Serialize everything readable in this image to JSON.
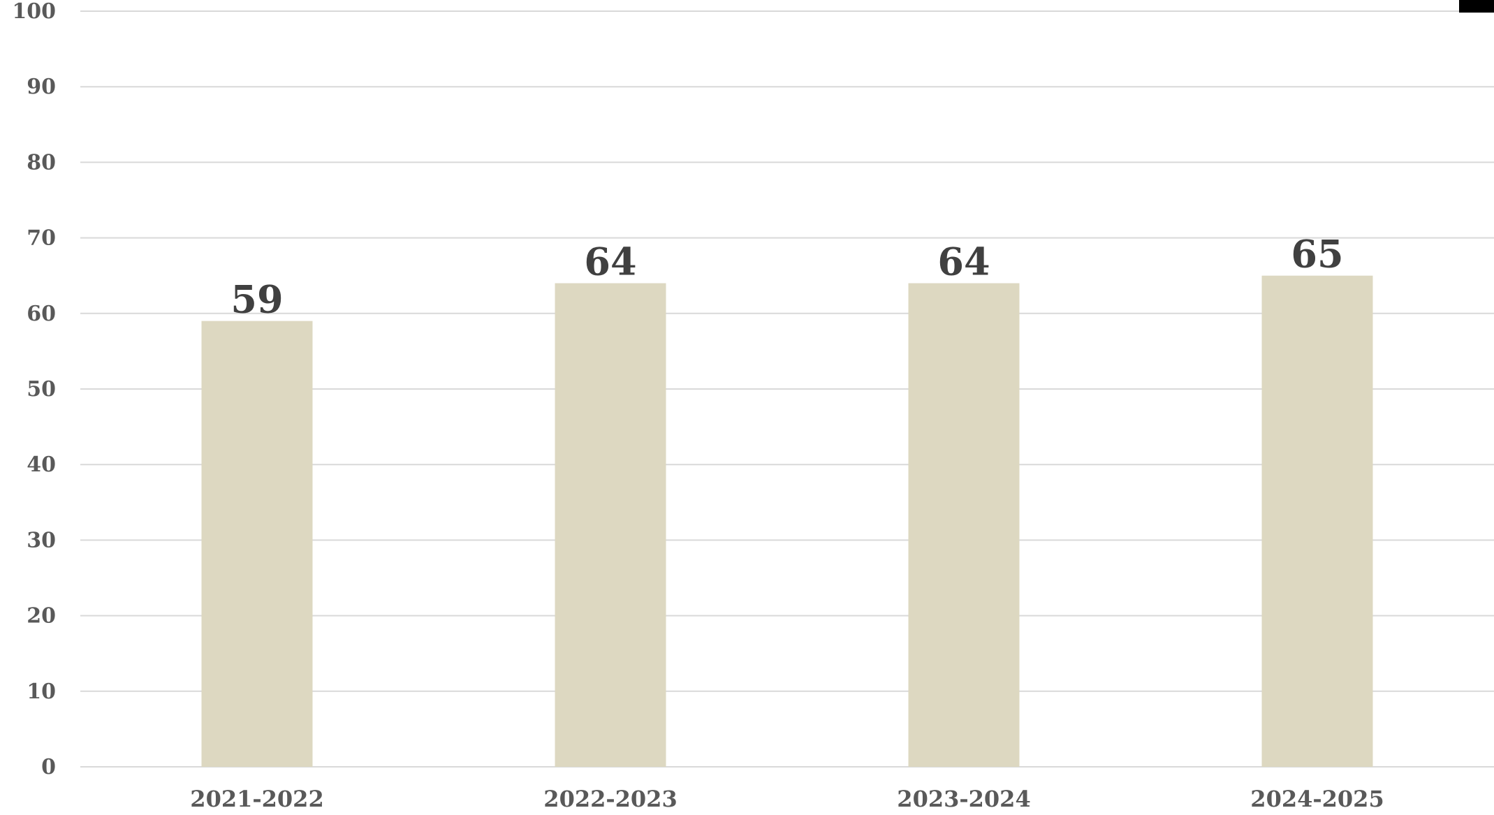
{
  "chart_data": {
    "type": "bar",
    "title": "",
    "xlabel": "",
    "ylabel": "",
    "categories": [
      "2021-2022",
      "2022-2023",
      "2023-2024",
      "2024-2025"
    ],
    "values": [
      59,
      64,
      64,
      65
    ],
    "data_labels": [
      "59",
      "64",
      "64",
      "65"
    ],
    "ylim": [
      0,
      100
    ],
    "yticks": [
      0,
      10,
      20,
      30,
      40,
      50,
      60,
      70,
      80,
      90,
      100
    ],
    "ytick_labels": [
      "0",
      "10",
      "20",
      "30",
      "40",
      "50",
      "60",
      "70",
      "80",
      "90",
      "100"
    ],
    "grid": true,
    "legend": "none",
    "colors": {
      "bar": "#ddd8c1",
      "grid": "#d9d9d9",
      "tick_text": "#595959",
      "data_label": "#404040"
    }
  }
}
